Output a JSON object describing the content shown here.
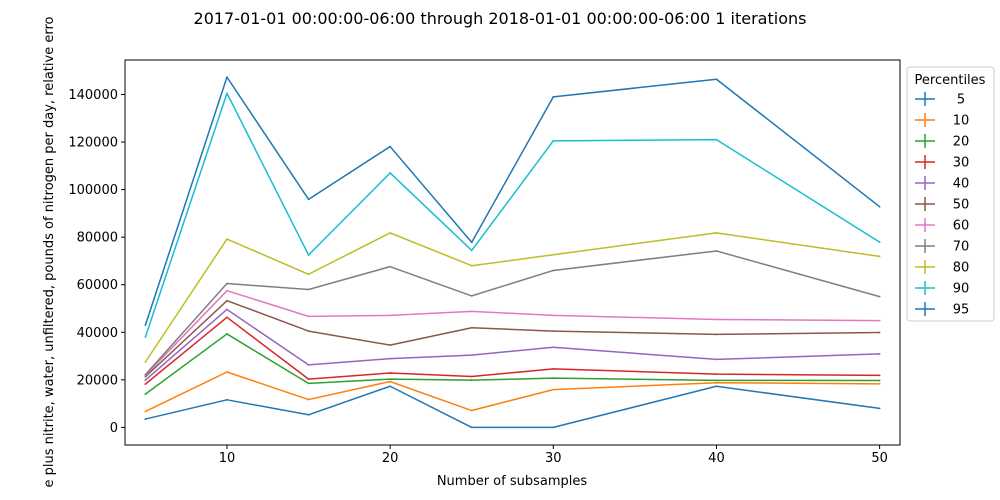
{
  "chart_data": {
    "type": "line",
    "title": "2017-01-01 00:00:00-06:00 through 2018-01-01 00:00:00-06:00 1 iterations",
    "xlabel": "Number of subsamples",
    "ylabel": "e plus nitrite, water, unfiltered, pounds of nitrogen per day, relative erro",
    "xlim": [
      3.75,
      51.25
    ],
    "ylim": [
      -7400,
      154500
    ],
    "xticks": [
      10,
      20,
      30,
      40,
      50
    ],
    "yticks": [
      0,
      20000,
      40000,
      60000,
      80000,
      100000,
      120000,
      140000
    ],
    "legend": {
      "title": "Percentiles",
      "placement": "outside-right-top"
    },
    "x": [
      5,
      10,
      15,
      20,
      25,
      30,
      40,
      50
    ],
    "series": [
      {
        "name": "5",
        "color": "#1f77b4",
        "values": [
          3500,
          11600,
          5300,
          17300,
          0,
          0,
          17300,
          8000
        ]
      },
      {
        "name": "10",
        "color": "#ff7f0e",
        "values": [
          6700,
          23300,
          11700,
          19300,
          7100,
          15900,
          18800,
          18300
        ]
      },
      {
        "name": "20",
        "color": "#2ca02c",
        "values": [
          14000,
          39300,
          18500,
          20300,
          19900,
          20700,
          19800,
          19700
        ]
      },
      {
        "name": "30",
        "color": "#d62728",
        "values": [
          18200,
          46300,
          20300,
          22900,
          21400,
          24600,
          22400,
          21900
        ]
      },
      {
        "name": "40",
        "color": "#9467bd",
        "values": [
          19900,
          49600,
          26300,
          28900,
          30400,
          33700,
          28600,
          30900
        ]
      },
      {
        "name": "50",
        "color": "#8c564b",
        "values": [
          21300,
          53300,
          40500,
          34600,
          41900,
          40500,
          39100,
          39900
        ]
      },
      {
        "name": "60",
        "color": "#e377c2",
        "values": [
          21900,
          57500,
          46700,
          47100,
          48800,
          47100,
          45400,
          44900
        ]
      },
      {
        "name": "70",
        "color": "#7f7f7f",
        "values": [
          22200,
          60500,
          58000,
          67600,
          55300,
          66000,
          74200,
          55000
        ]
      },
      {
        "name": "80",
        "color": "#bcbd22",
        "values": [
          27500,
          79200,
          64400,
          81800,
          68000,
          72600,
          81800,
          71900
        ]
      },
      {
        "name": "90",
        "color": "#17becf",
        "values": [
          38000,
          140500,
          72500,
          107000,
          74400,
          120500,
          121000,
          77900
        ]
      },
      {
        "name": "95",
        "color": "#1f77b4",
        "values": [
          43000,
          147300,
          95900,
          118100,
          77800,
          139000,
          146400,
          92800
        ]
      }
    ]
  }
}
